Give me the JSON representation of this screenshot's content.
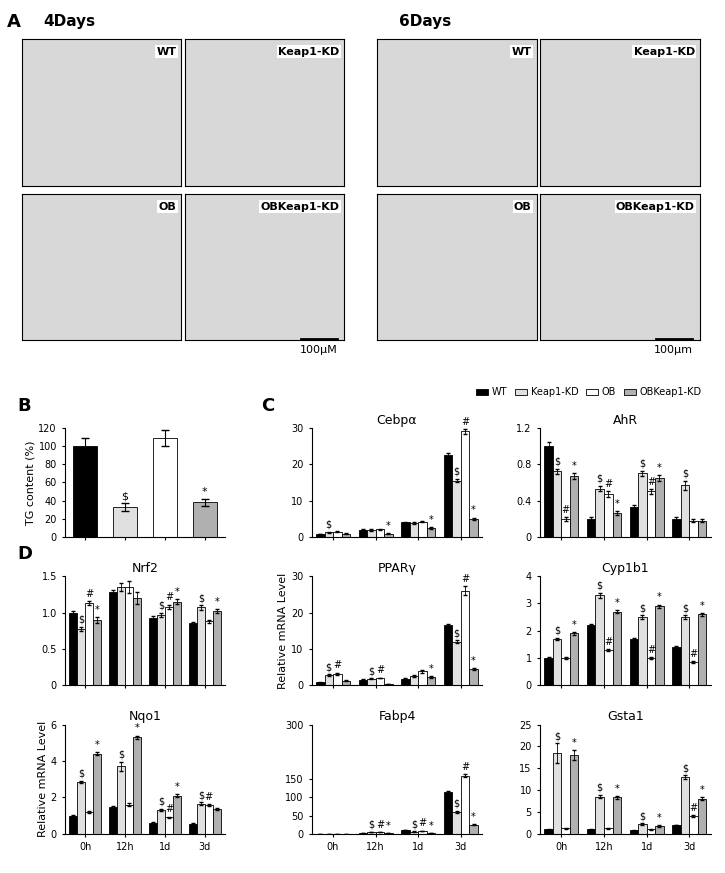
{
  "micrographs": {
    "panel": "A",
    "groups": [
      {
        "title": "4Days",
        "scale_bar": "100µM",
        "images": [
          "WT",
          "Keap1-KD",
          "OB",
          "OBKeap1-KD"
        ]
      },
      {
        "title": "6Days",
        "scale_bar": "100µm",
        "images": [
          "WT",
          "Keap1-KD",
          "OB",
          "OBKeap1-KD"
        ]
      }
    ]
  },
  "chart_data": [
    {
      "type": "bar",
      "panel": "B",
      "ylabel": "TG content (%)",
      "categories": [
        null,
        null,
        null,
        null
      ],
      "values": [
        100,
        33,
        109,
        38
      ],
      "errors": [
        9,
        4,
        9,
        4
      ],
      "colors": [
        "#000000",
        "#e0e0e0",
        "#ffffff",
        "#b0b0b0"
      ],
      "significance": [
        null,
        "$",
        null,
        "*"
      ],
      "ylim": [
        0,
        120
      ],
      "yticks": [
        0,
        20,
        40,
        60,
        80,
        100,
        120
      ],
      "tick_labels": "y"
    },
    {
      "type": "grouped_bar",
      "panel": "C",
      "title": "Cebpα",
      "categories": [
        "0h",
        "12h",
        "1d",
        "3d"
      ],
      "ylim": [
        0,
        30
      ],
      "yticks": [
        0,
        10,
        20,
        30
      ],
      "tick_labels": "y",
      "series": [
        {
          "name": "WT",
          "color": "#000000",
          "values": [
            0.8,
            2.0,
            4.0,
            22.5
          ],
          "errors": [
            0.1,
            0.2,
            0.2,
            0.5
          ],
          "significance": [
            null,
            null,
            null,
            null
          ]
        },
        {
          "name": "Keap1-KD",
          "color": "#e0e0e0",
          "values": [
            1.3,
            1.9,
            3.8,
            15.5
          ],
          "errors": [
            0.1,
            0.2,
            0.2,
            0.4
          ],
          "significance": [
            "$",
            null,
            null,
            "$"
          ]
        },
        {
          "name": "OB",
          "color": "#ffffff",
          "values": [
            1.4,
            2.1,
            4.2,
            29
          ],
          "errors": [
            0.1,
            0.2,
            0.2,
            0.6
          ],
          "significance": [
            null,
            null,
            null,
            "#"
          ]
        },
        {
          "name": "OBKeap1-KD",
          "color": "#b0b0b0",
          "values": [
            0.9,
            0.9,
            2.5,
            5
          ],
          "errors": [
            0.1,
            0.1,
            0.2,
            0.3
          ],
          "significance": [
            null,
            "*",
            "*",
            "*"
          ]
        }
      ]
    },
    {
      "type": "grouped_bar",
      "title": "AhR",
      "categories": [
        "0h",
        "12h",
        "1d",
        "3d"
      ],
      "ylim": [
        0,
        1.2
      ],
      "yticks": [
        0,
        0.4,
        0.8,
        1.2
      ],
      "tick_labels": "y",
      "legend": "upper right",
      "series": [
        {
          "name": "WT",
          "color": "#000000",
          "values": [
            1.0,
            0.2,
            0.33,
            0.2
          ],
          "errors": [
            0.04,
            0.02,
            0.02,
            0.02
          ],
          "significance": [
            null,
            null,
            null,
            null
          ]
        },
        {
          "name": "Keap1-KD",
          "color": "#e0e0e0",
          "values": [
            0.72,
            0.53,
            0.7,
            0.57
          ],
          "errors": [
            0.03,
            0.03,
            0.03,
            0.05
          ],
          "significance": [
            "$",
            "$",
            "$",
            "$"
          ]
        },
        {
          "name": "OB",
          "color": "#ffffff",
          "values": [
            0.2,
            0.47,
            0.5,
            0.18
          ],
          "errors": [
            0.02,
            0.03,
            0.03,
            0.02
          ],
          "significance": [
            "#",
            "#",
            "#",
            null
          ]
        },
        {
          "name": "OBKeap1-KD",
          "color": "#b0b0b0",
          "values": [
            0.67,
            0.26,
            0.65,
            0.18
          ],
          "errors": [
            0.03,
            0.02,
            0.03,
            0.02
          ],
          "significance": [
            "*",
            "*",
            "*",
            null
          ]
        }
      ]
    },
    {
      "type": "grouped_bar",
      "title": "PPARγ",
      "ylabel": "Relative mRNA Level",
      "categories": [
        "0h",
        "12h",
        "1d",
        "3d"
      ],
      "ylim": [
        0,
        30
      ],
      "yticks": [
        0,
        10,
        20,
        30
      ],
      "tick_labels": "y",
      "series": [
        {
          "name": "WT",
          "color": "#000000",
          "values": [
            0.8,
            1.5,
            1.8,
            16.5
          ],
          "errors": [
            0.1,
            0.1,
            0.1,
            0.4
          ],
          "significance": [
            null,
            null,
            null,
            null
          ]
        },
        {
          "name": "Keap1-KD",
          "color": "#e0e0e0",
          "values": [
            2.8,
            1.8,
            2.5,
            12
          ],
          "errors": [
            0.2,
            0.1,
            0.2,
            0.4
          ],
          "significance": [
            "$",
            "$",
            null,
            "$"
          ]
        },
        {
          "name": "OB",
          "color": "#ffffff",
          "values": [
            3.2,
            2.0,
            3.8,
            26
          ],
          "errors": [
            0.3,
            0.1,
            0.3,
            1.2
          ],
          "significance": [
            "#",
            "#",
            null,
            "#"
          ]
        },
        {
          "name": "OBKeap1-KD",
          "color": "#b0b0b0",
          "values": [
            1.3,
            0.4,
            2.3,
            4.5
          ],
          "errors": [
            0.1,
            0.05,
            0.2,
            0.3
          ],
          "significance": [
            null,
            null,
            "*",
            "*"
          ]
        }
      ]
    },
    {
      "type": "grouped_bar",
      "title": "Cyp1b1",
      "categories": [
        "0h",
        "12h",
        "1d",
        "3d"
      ],
      "ylim": [
        0,
        4
      ],
      "yticks": [
        0,
        1,
        2,
        3,
        4
      ],
      "tick_labels": "y",
      "series": [
        {
          "name": "WT",
          "color": "#000000",
          "values": [
            1.0,
            2.2,
            1.7,
            1.4
          ],
          "errors": [
            0.03,
            0.05,
            0.05,
            0.04
          ],
          "significance": [
            null,
            null,
            null,
            null
          ]
        },
        {
          "name": "Keap1-KD",
          "color": "#e0e0e0",
          "values": [
            1.7,
            3.3,
            2.5,
            2.5
          ],
          "errors": [
            0.05,
            0.1,
            0.07,
            0.07
          ],
          "significance": [
            "$",
            "$",
            "$",
            "$"
          ]
        },
        {
          "name": "OB",
          "color": "#ffffff",
          "values": [
            1.0,
            1.3,
            1.0,
            0.85
          ],
          "errors": [
            0.03,
            0.04,
            0.03,
            0.05
          ],
          "significance": [
            null,
            "#",
            "#",
            "#"
          ]
        },
        {
          "name": "OBKeap1-KD",
          "color": "#b0b0b0",
          "values": [
            1.9,
            2.7,
            2.9,
            2.6
          ],
          "errors": [
            0.05,
            0.06,
            0.06,
            0.06
          ],
          "significance": [
            "*",
            "*",
            "*",
            "*"
          ]
        }
      ]
    },
    {
      "type": "grouped_bar",
      "title": "Fabp4",
      "categories": [
        "0h",
        "12h",
        "1d",
        "3d"
      ],
      "ylim": [
        0,
        300
      ],
      "yticks": [
        0,
        50,
        100,
        150,
        300
      ],
      "series": [
        {
          "name": "WT",
          "color": "#000000",
          "values": [
            0.2,
            3,
            10,
            115
          ],
          "errors": [
            0.05,
            0.3,
            0.5,
            3
          ],
          "significance": [
            null,
            null,
            null,
            null
          ]
        },
        {
          "name": "Keap1-KD",
          "color": "#e0e0e0",
          "values": [
            0.2,
            4,
            6,
            60
          ],
          "errors": [
            0.05,
            0.3,
            0.4,
            3
          ],
          "significance": [
            null,
            "$",
            "$",
            "$"
          ]
        },
        {
          "name": "OB",
          "color": "#ffffff",
          "values": [
            0.2,
            4.5,
            8,
            160
          ],
          "errors": [
            0.05,
            0.3,
            0.5,
            5
          ],
          "significance": [
            null,
            "#",
            "#",
            "#"
          ]
        },
        {
          "name": "OBKeap1-KD",
          "color": "#b0b0b0",
          "values": [
            0.2,
            1,
            2,
            25
          ],
          "errors": [
            0.05,
            0.1,
            0.2,
            1.5
          ],
          "significance": [
            null,
            "*",
            "*",
            "*"
          ]
        }
      ]
    },
    {
      "type": "grouped_bar",
      "title": "Gsta1",
      "categories": [
        "0h",
        "12h",
        "1d",
        "3d"
      ],
      "ylim": [
        0,
        25
      ],
      "yticks": [
        0,
        5,
        10,
        15,
        20,
        25
      ],
      "series": [
        {
          "name": "WT",
          "color": "#000000",
          "values": [
            1,
            1,
            0.8,
            2
          ],
          "errors": [
            0.1,
            0.1,
            0.1,
            0.1
          ],
          "significance": [
            null,
            null,
            null,
            null
          ]
        },
        {
          "name": "Keap1-KD",
          "color": "#e0e0e0",
          "values": [
            18.5,
            8.5,
            2.2,
            13
          ],
          "errors": [
            2.2,
            0.4,
            0.2,
            0.4
          ],
          "significance": [
            "$",
            "$",
            "$",
            "$"
          ]
        },
        {
          "name": "OB",
          "color": "#ffffff",
          "values": [
            1.2,
            1.2,
            1,
            4
          ],
          "errors": [
            0.1,
            0.1,
            0.1,
            0.2
          ],
          "significance": [
            null,
            null,
            null,
            "#"
          ]
        },
        {
          "name": "OBKeap1-KD",
          "color": "#b0b0b0",
          "values": [
            18,
            8.3,
            1.8,
            8
          ],
          "errors": [
            1.2,
            0.4,
            0.2,
            0.3
          ],
          "significance": [
            "*",
            "*",
            "*",
            "*"
          ]
        }
      ]
    },
    {
      "type": "grouped_bar",
      "panel": "D",
      "title": "Nrf2",
      "categories": [
        "0h",
        "12h",
        "1d",
        "3d"
      ],
      "ylim": [
        0,
        1.5
      ],
      "yticks": [
        0,
        0.5,
        {
          "value": 1,
          "label": "1.0"
        },
        1.5
      ],
      "tick_labels": "y",
      "series": [
        {
          "name": "WT",
          "color": "#000000",
          "values": [
            1.0,
            1.28,
            0.93,
            0.85
          ],
          "errors": [
            0.02,
            0.03,
            0.02,
            0.02
          ],
          "significance": [
            null,
            null,
            null,
            null
          ]
        },
        {
          "name": "Keap1-KD",
          "color": "#e0e0e0",
          "values": [
            0.77,
            1.35,
            0.97,
            1.07
          ],
          "errors": [
            0.03,
            0.06,
            0.03,
            0.03
          ],
          "significance": [
            "$",
            null,
            "$",
            "$"
          ]
        },
        {
          "name": "OB",
          "color": "#ffffff",
          "values": [
            1.13,
            1.35,
            1.08,
            0.88
          ],
          "errors": [
            0.03,
            0.08,
            0.03,
            0.02
          ],
          "significance": [
            "#",
            null,
            "#",
            null
          ]
        },
        {
          "name": "OBKeap1-KD",
          "color": "#b0b0b0",
          "values": [
            0.9,
            1.2,
            1.15,
            1.02
          ],
          "errors": [
            0.04,
            0.08,
            0.03,
            0.03
          ],
          "significance": [
            "*",
            null,
            "*",
            "*"
          ]
        }
      ]
    },
    {
      "type": "grouped_bar",
      "title": "Nqo1",
      "ylabel": "Relative mRNA Level",
      "categories": [
        "0h",
        "12h",
        "1d",
        "3d"
      ],
      "ylim": [
        0,
        6
      ],
      "yticks": [
        0,
        2,
        4,
        6
      ],
      "series": [
        {
          "name": "WT",
          "color": "#000000",
          "values": [
            1.0,
            1.45,
            0.6,
            0.55
          ],
          "errors": [
            0.05,
            0.05,
            0.03,
            0.03
          ],
          "significance": [
            null,
            null,
            null,
            null
          ]
        },
        {
          "name": "Keap1-KD",
          "color": "#e0e0e0",
          "values": [
            2.85,
            3.7,
            1.3,
            1.65
          ],
          "errors": [
            0.05,
            0.25,
            0.05,
            0.08
          ],
          "significance": [
            "$",
            "$",
            "$",
            "$"
          ]
        },
        {
          "name": "OB",
          "color": "#ffffff",
          "values": [
            1.2,
            1.6,
            0.9,
            1.6
          ],
          "errors": [
            0.05,
            0.08,
            0.04,
            0.05
          ],
          "significance": [
            null,
            null,
            "#",
            "#"
          ]
        },
        {
          "name": "OBKeap1-KD",
          "color": "#b0b0b0",
          "values": [
            4.4,
            5.3,
            2.1,
            1.35
          ],
          "errors": [
            0.08,
            0.1,
            0.06,
            0.05
          ],
          "significance": [
            "*",
            "*",
            "*",
            null
          ]
        }
      ]
    }
  ]
}
